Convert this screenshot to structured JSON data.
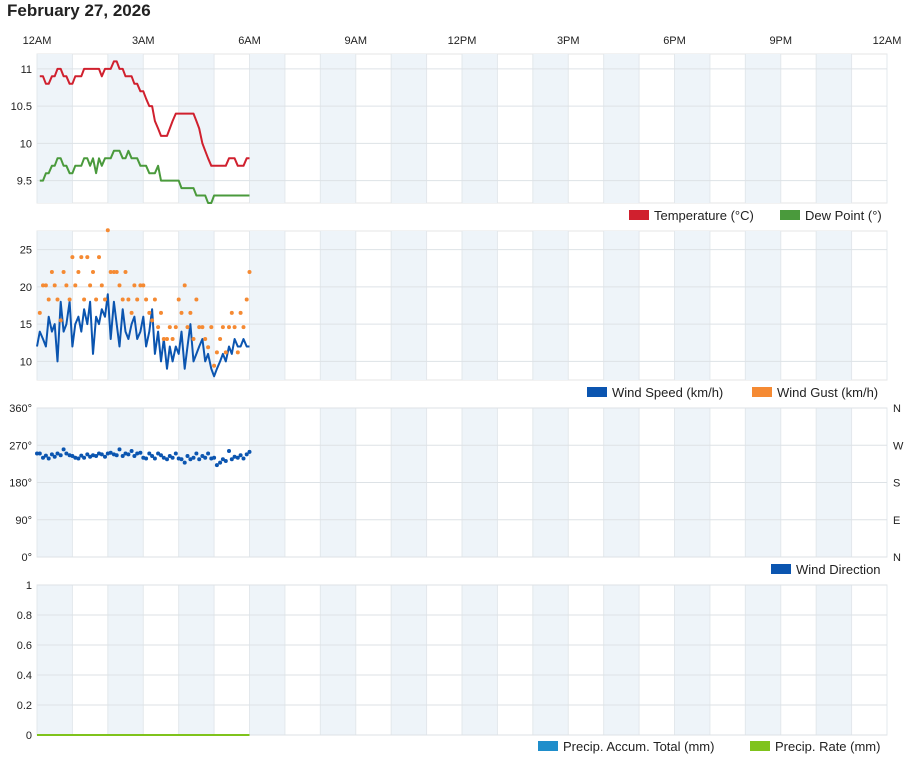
{
  "page_title": "February 27, 2026",
  "time_axis": {
    "labels": [
      "12AM",
      "3AM",
      "6AM",
      "9AM",
      "12PM",
      "3PM",
      "6PM",
      "9PM",
      "12AM"
    ],
    "start_hour": 0,
    "end_hour": 24
  },
  "colors": {
    "temperature": "#d0202e",
    "dew_point": "#4a9a3c",
    "wind_speed": "#0b55b0",
    "wind_gust": "#f58a33",
    "wind_direction": "#0b55b0",
    "precip_accum": "#1f8ecb",
    "precip_rate": "#7fc31c",
    "band": "#eef4f9"
  },
  "chart_data": [
    {
      "type": "line",
      "name": "temperature-panel",
      "ylim": [
        9.2,
        11.2
      ],
      "yticks": [
        9.5,
        10,
        10.5,
        11
      ],
      "ytick_labels": [
        "9.5",
        "10",
        "10.5",
        "11"
      ],
      "series": [
        {
          "name": "Temperature (°C)",
          "x": [
            0.08,
            0.17,
            0.25,
            0.33,
            0.42,
            0.5,
            0.58,
            0.67,
            0.75,
            0.83,
            0.92,
            1.0,
            1.08,
            1.17,
            1.25,
            1.33,
            1.42,
            1.5,
            1.58,
            1.67,
            1.75,
            1.83,
            1.92,
            2.0,
            2.08,
            2.17,
            2.25,
            2.33,
            2.42,
            2.5,
            2.58,
            2.67,
            2.75,
            2.83,
            2.92,
            3.0,
            3.08,
            3.17,
            3.25,
            3.33,
            3.42,
            3.5,
            3.58,
            3.67,
            3.75,
            3.83,
            3.92,
            4.0,
            4.08,
            4.17,
            4.25,
            4.33,
            4.42,
            4.5,
            4.58,
            4.67,
            4.75,
            4.83,
            4.92,
            5.0,
            5.08,
            5.17,
            5.25,
            5.33,
            5.42,
            5.5,
            5.58,
            5.67,
            5.75,
            5.83,
            5.92,
            6.0
          ],
          "values": [
            10.9,
            10.9,
            10.8,
            10.8,
            10.9,
            10.9,
            11.0,
            11.0,
            10.9,
            10.9,
            10.8,
            10.8,
            10.9,
            10.9,
            10.9,
            11.0,
            11.0,
            11.0,
            11.0,
            11.0,
            11.0,
            10.9,
            11.0,
            11.0,
            11.0,
            11.1,
            11.1,
            11.0,
            11.0,
            10.9,
            10.9,
            10.9,
            10.8,
            10.8,
            10.7,
            10.7,
            10.6,
            10.5,
            10.5,
            10.3,
            10.2,
            10.1,
            10.1,
            10.1,
            10.2,
            10.3,
            10.4,
            10.4,
            10.4,
            10.4,
            10.4,
            10.4,
            10.4,
            10.3,
            10.2,
            10.0,
            9.9,
            9.8,
            9.7,
            9.7,
            9.7,
            9.7,
            9.7,
            9.7,
            9.8,
            9.8,
            9.8,
            9.7,
            9.7,
            9.7,
            9.8,
            9.8
          ]
        },
        {
          "name": "Dew Point (°)",
          "x": [
            0.08,
            0.17,
            0.25,
            0.33,
            0.42,
            0.5,
            0.58,
            0.67,
            0.75,
            0.83,
            0.92,
            1.0,
            1.08,
            1.17,
            1.25,
            1.33,
            1.42,
            1.5,
            1.58,
            1.67,
            1.75,
            1.83,
            1.92,
            2.0,
            2.08,
            2.17,
            2.25,
            2.33,
            2.42,
            2.5,
            2.58,
            2.67,
            2.75,
            2.83,
            2.92,
            3.0,
            3.08,
            3.17,
            3.25,
            3.33,
            3.42,
            3.5,
            3.58,
            3.67,
            3.75,
            3.83,
            3.92,
            4.0,
            4.08,
            4.17,
            4.25,
            4.33,
            4.42,
            4.5,
            4.58,
            4.67,
            4.75,
            4.83,
            4.92,
            5.0,
            5.08,
            5.17,
            5.25,
            5.33,
            5.42,
            5.5,
            5.58,
            5.67,
            5.75,
            5.83,
            5.92,
            6.0
          ],
          "values": [
            9.5,
            9.5,
            9.6,
            9.6,
            9.7,
            9.7,
            9.8,
            9.8,
            9.7,
            9.7,
            9.6,
            9.6,
            9.7,
            9.7,
            9.7,
            9.8,
            9.8,
            9.7,
            9.8,
            9.6,
            9.8,
            9.7,
            9.8,
            9.8,
            9.8,
            9.9,
            9.9,
            9.9,
            9.8,
            9.8,
            9.9,
            9.8,
            9.8,
            9.8,
            9.7,
            9.7,
            9.7,
            9.6,
            9.6,
            9.6,
            9.7,
            9.5,
            9.5,
            9.5,
            9.5,
            9.5,
            9.5,
            9.5,
            9.4,
            9.4,
            9.4,
            9.4,
            9.4,
            9.3,
            9.3,
            9.3,
            9.3,
            9.2,
            9.2,
            9.3,
            9.3,
            9.3,
            9.3,
            9.3,
            9.3,
            9.3,
            9.3,
            9.3,
            9.3,
            9.3,
            9.3,
            9.3
          ]
        }
      ]
    },
    {
      "type": "line",
      "name": "wind-panel",
      "ylim": [
        7.5,
        27.5
      ],
      "yticks": [
        10,
        15,
        20,
        25
      ],
      "ytick_labels": [
        "10",
        "15",
        "20",
        "25"
      ],
      "series": [
        {
          "name": "Wind Speed (km/h)",
          "x": [
            0.0,
            0.08,
            0.17,
            0.25,
            0.33,
            0.42,
            0.5,
            0.58,
            0.67,
            0.75,
            0.83,
            0.92,
            1.0,
            1.08,
            1.17,
            1.25,
            1.33,
            1.42,
            1.5,
            1.58,
            1.67,
            1.75,
            1.83,
            1.92,
            2.0,
            2.08,
            2.17,
            2.25,
            2.33,
            2.42,
            2.5,
            2.58,
            2.67,
            2.75,
            2.83,
            2.92,
            3.0,
            3.08,
            3.17,
            3.25,
            3.33,
            3.42,
            3.5,
            3.58,
            3.67,
            3.75,
            3.83,
            3.92,
            4.0,
            4.08,
            4.17,
            4.25,
            4.33,
            4.42,
            4.5,
            4.58,
            4.67,
            4.75,
            4.83,
            4.92,
            5.0,
            5.08,
            5.17,
            5.25,
            5.33,
            5.42,
            5.5,
            5.58,
            5.67,
            5.75,
            5.83,
            5.92,
            6.0
          ],
          "values": [
            12,
            14,
            13,
            12,
            16,
            14,
            15,
            10,
            18,
            14,
            15,
            18,
            12,
            15,
            16,
            14,
            17,
            15,
            18,
            11,
            16,
            15,
            17,
            16,
            19,
            13,
            18,
            15,
            12,
            17,
            14,
            13,
            15,
            16,
            13,
            14,
            16,
            12,
            14,
            17,
            11,
            14,
            10,
            13,
            9,
            12,
            10,
            12,
            11,
            14,
            9,
            12,
            15,
            10,
            11,
            12,
            13,
            10,
            11,
            9,
            8,
            9,
            10,
            11,
            10,
            12,
            11,
            13,
            12,
            12,
            13,
            12,
            12
          ]
        },
        {
          "name": "Wind Gust (km/h)",
          "x": [
            0.08,
            0.17,
            0.25,
            0.33,
            0.42,
            0.5,
            0.58,
            0.67,
            0.75,
            0.83,
            0.92,
            1.0,
            1.08,
            1.17,
            1.25,
            1.33,
            1.42,
            1.5,
            1.58,
            1.67,
            1.75,
            1.83,
            1.92,
            2.0,
            2.08,
            2.17,
            2.25,
            2.33,
            2.42,
            2.5,
            2.58,
            2.67,
            2.75,
            2.83,
            2.92,
            3.0,
            3.08,
            3.17,
            3.25,
            3.33,
            3.42,
            3.5,
            3.58,
            3.67,
            3.75,
            3.83,
            3.92,
            4.0,
            4.08,
            4.17,
            4.25,
            4.33,
            4.42,
            4.5,
            4.58,
            4.67,
            4.75,
            4.83,
            4.92,
            5.0,
            5.08,
            5.17,
            5.25,
            5.33,
            5.42,
            5.5,
            5.58,
            5.67,
            5.75,
            5.83,
            5.92,
            6.0
          ],
          "values": [
            16.5,
            20.2,
            20.2,
            18.3,
            22,
            20.2,
            18.3,
            15.5,
            22,
            20.2,
            18.3,
            24,
            20.2,
            22,
            24,
            18.3,
            24,
            20.2,
            22,
            18.3,
            24,
            20.2,
            18.3,
            27.6,
            22,
            22,
            22,
            20.2,
            18.3,
            22,
            18.3,
            16.5,
            20.2,
            18.3,
            20.2,
            20.2,
            18.3,
            16.5,
            15.5,
            18.3,
            14.6,
            16.5,
            13,
            13,
            14.6,
            13,
            14.6,
            18.3,
            16.5,
            20.2,
            14.6,
            16.5,
            13,
            18.3,
            14.6,
            14.6,
            13,
            11.9,
            14.6,
            9.4,
            11.2,
            13,
            14.6,
            11.2,
            14.6,
            16.5,
            14.6,
            11.2,
            16.5,
            14.6,
            18.3,
            22
          ]
        }
      ]
    },
    {
      "type": "scatter",
      "name": "wind-direction-panel",
      "ylim": [
        0,
        360
      ],
      "yticks": [
        0,
        90,
        180,
        270,
        360
      ],
      "ytick_labels": [
        "0°",
        "90°",
        "180°",
        "270°",
        "360°"
      ],
      "right_tick_labels": [
        "N",
        "E",
        "S",
        "W",
        "N"
      ],
      "series": [
        {
          "name": "Wind Direction",
          "x": [
            0.0,
            0.08,
            0.17,
            0.25,
            0.33,
            0.42,
            0.5,
            0.58,
            0.67,
            0.75,
            0.83,
            0.92,
            1.0,
            1.08,
            1.17,
            1.25,
            1.33,
            1.42,
            1.5,
            1.58,
            1.67,
            1.75,
            1.83,
            1.92,
            2.0,
            2.08,
            2.17,
            2.25,
            2.33,
            2.42,
            2.5,
            2.58,
            2.67,
            2.75,
            2.83,
            2.92,
            3.0,
            3.08,
            3.17,
            3.25,
            3.33,
            3.42,
            3.5,
            3.58,
            3.67,
            3.75,
            3.83,
            3.92,
            4.0,
            4.08,
            4.17,
            4.25,
            4.33,
            4.42,
            4.5,
            4.58,
            4.67,
            4.75,
            4.83,
            4.92,
            5.0,
            5.08,
            5.17,
            5.25,
            5.33,
            5.42,
            5.5,
            5.58,
            5.67,
            5.75,
            5.83,
            5.92,
            6.0
          ],
          "values": [
            250,
            250,
            240,
            245,
            238,
            248,
            242,
            250,
            246,
            260,
            250,
            246,
            244,
            240,
            238,
            245,
            240,
            248,
            242,
            246,
            244,
            250,
            248,
            242,
            250,
            252,
            248,
            246,
            260,
            244,
            250,
            248,
            256,
            244,
            250,
            252,
            240,
            238,
            250,
            244,
            238,
            250,
            246,
            240,
            236,
            244,
            240,
            250,
            238,
            236,
            228,
            244,
            236,
            240,
            250,
            236,
            244,
            240,
            250,
            238,
            240,
            222,
            228,
            236,
            232,
            256,
            236,
            242,
            240,
            246,
            238,
            248,
            254
          ]
        }
      ]
    },
    {
      "type": "line",
      "name": "precip-panel",
      "ylim": [
        0,
        1
      ],
      "yticks": [
        0,
        0.2,
        0.4,
        0.6,
        0.8,
        1
      ],
      "ytick_labels": [
        "0",
        "0.2",
        "0.4",
        "0.6",
        "0.8",
        "1"
      ],
      "series": [
        {
          "name": "Precip. Accum. Total (mm)",
          "x": [
            0.0,
            6.0
          ],
          "values": [
            0,
            0
          ]
        },
        {
          "name": "Precip. Rate (mm)",
          "x": [
            0.0,
            6.0
          ],
          "values": [
            0,
            0
          ]
        }
      ]
    }
  ]
}
